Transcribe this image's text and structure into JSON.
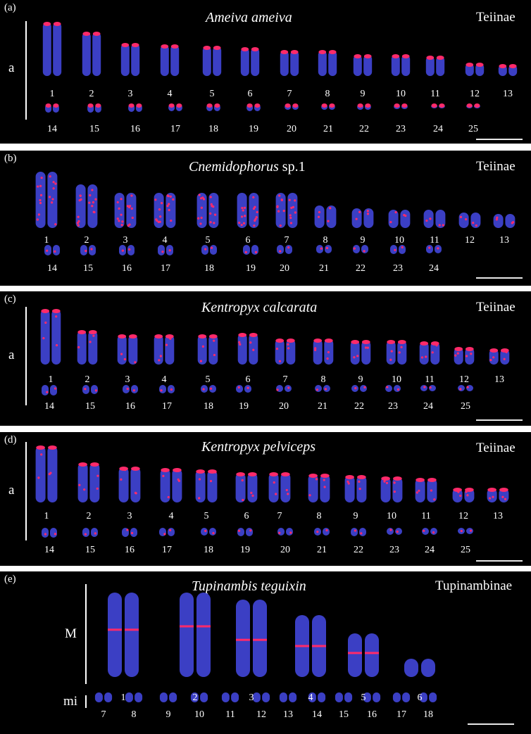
{
  "colors": {
    "background": "#000000",
    "separator": "#ffffff",
    "chromosome": "#3b3fc4",
    "signal": "#ff2a6a",
    "text": "#ffffff"
  },
  "panels": [
    {
      "label": "(a)",
      "species": "Ameiva ameiva",
      "species_suffix": "",
      "family": "Teiinae",
      "side_label": "a",
      "row1_numbers": [
        "1",
        "2",
        "3",
        "4",
        "5",
        "6",
        "7",
        "8",
        "9",
        "10",
        "11",
        "12",
        "13"
      ],
      "row2_numbers": [
        "14",
        "15",
        "16",
        "17",
        "18",
        "19",
        "20",
        "21",
        "22",
        "23",
        "24",
        "25"
      ]
    },
    {
      "label": "(b)",
      "species": "Cnemidophorus",
      "species_suffix": " sp.1",
      "family": "Teiinae",
      "side_label": "",
      "row1_numbers": [
        "1",
        "2",
        "3",
        "4",
        "5",
        "6",
        "7",
        "8",
        "9",
        "10",
        "11",
        "12",
        "13"
      ],
      "row2_numbers": [
        "14",
        "15",
        "16",
        "17",
        "18",
        "19",
        "20",
        "21",
        "22",
        "23",
        "24"
      ]
    },
    {
      "label": "(c)",
      "species": "Kentropyx calcarata",
      "species_suffix": "",
      "family": "Teiinae",
      "side_label": "a",
      "row1_numbers": [
        "1",
        "2",
        "3",
        "4",
        "5",
        "6",
        "7",
        "8",
        "9",
        "10",
        "11",
        "12",
        "13"
      ],
      "row2_numbers": [
        "14",
        "15",
        "16",
        "17",
        "18",
        "19",
        "20",
        "21",
        "22",
        "23",
        "24",
        "25"
      ]
    },
    {
      "label": "(d)",
      "species": "Kentropyx pelviceps",
      "species_suffix": "",
      "family": "Teiinae",
      "side_label": "a",
      "row1_numbers": [
        "1",
        "2",
        "3",
        "4",
        "5",
        "6",
        "7",
        "8",
        "9",
        "10",
        "11",
        "12",
        "13"
      ],
      "row2_numbers": [
        "14",
        "15",
        "16",
        "17",
        "18",
        "19",
        "20",
        "21",
        "22",
        "23",
        "24",
        "25"
      ]
    },
    {
      "label": "(e)",
      "species": "Tupinambis teguixin",
      "species_suffix": "",
      "family": "Tupinambinae",
      "side_label": "M",
      "side_label_2": "mi",
      "row1_numbers": [
        "1",
        "2",
        "3",
        "4",
        "5",
        "6"
      ],
      "row2_numbers": [
        "7",
        "8",
        "9",
        "10",
        "11",
        "12",
        "13",
        "14",
        "15",
        "16",
        "17",
        "18"
      ]
    }
  ]
}
